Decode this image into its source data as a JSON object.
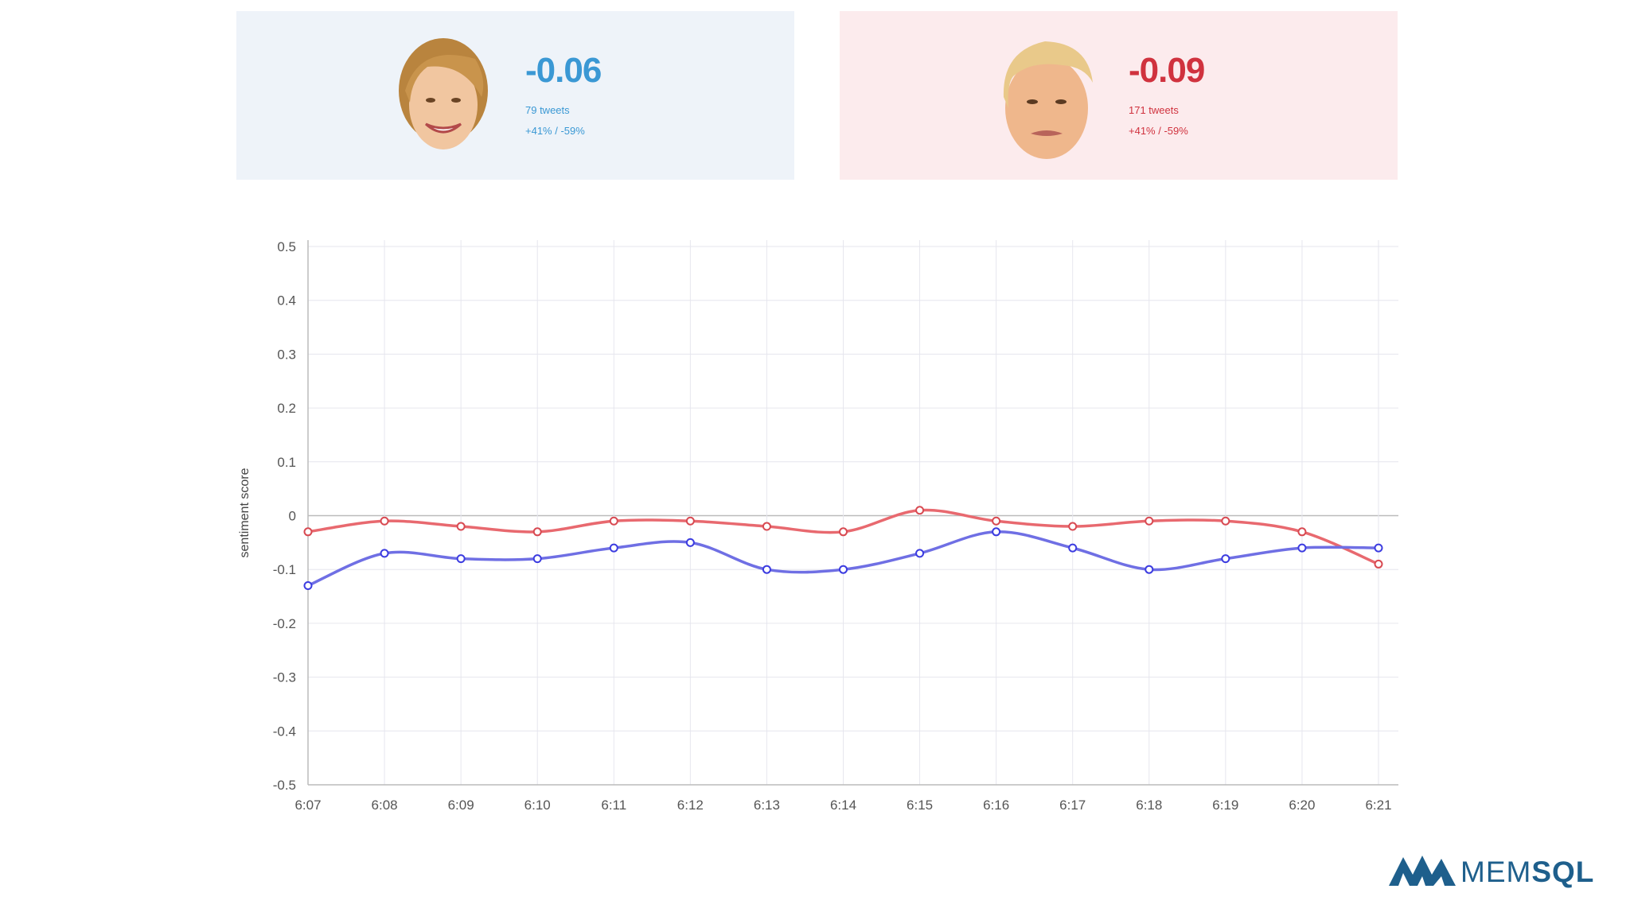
{
  "cards": {
    "clinton": {
      "score": "-0.06",
      "tweets": "79 tweets",
      "split": "+41% / -59%",
      "color": "#3a98d4",
      "bg": "#eef3f9"
    },
    "trump": {
      "score": "-0.09",
      "tweets": "171 tweets",
      "split": "+41% / -59%",
      "color": "#d0323e",
      "bg": "#fcebed"
    }
  },
  "chart_data": {
    "type": "line",
    "title": "",
    "xlabel": "",
    "ylabel": "sentiment score",
    "ylim": [
      -0.5,
      0.5
    ],
    "yticks": [
      0.5,
      0.4,
      0.3,
      0.2,
      0.1,
      0,
      -0.1,
      -0.2,
      -0.3,
      -0.4,
      -0.5
    ],
    "ytick_labels": [
      "0.5",
      "0.4",
      "0.3",
      "0.2",
      "0.1",
      "0",
      "-0.1",
      "-0.2",
      "-0.3",
      "-0.4",
      "-0.5"
    ],
    "categories": [
      "6:07",
      "6:08",
      "6:09",
      "6:10",
      "6:11",
      "6:12",
      "6:13",
      "6:14",
      "6:15",
      "6:16",
      "6:17",
      "6:18",
      "6:19",
      "6:20",
      "6:21"
    ],
    "grid": true,
    "series": [
      {
        "name": "Trump",
        "color": "#e8696f",
        "values": [
          -0.03,
          -0.01,
          -0.02,
          -0.03,
          -0.01,
          -0.01,
          -0.02,
          -0.03,
          0.01,
          -0.01,
          -0.02,
          -0.01,
          -0.01,
          -0.03,
          -0.09
        ]
      },
      {
        "name": "Clinton",
        "color": "#6f6fe4",
        "values": [
          -0.13,
          -0.07,
          -0.08,
          -0.08,
          -0.06,
          -0.05,
          -0.1,
          -0.1,
          -0.07,
          -0.03,
          -0.06,
          -0.1,
          -0.08,
          -0.06,
          -0.06
        ]
      }
    ]
  },
  "logo": {
    "text_light": "MEM",
    "text_bold": "SQL",
    "icon": "memsql-mountain-icon",
    "color": "#1e5f8c"
  }
}
